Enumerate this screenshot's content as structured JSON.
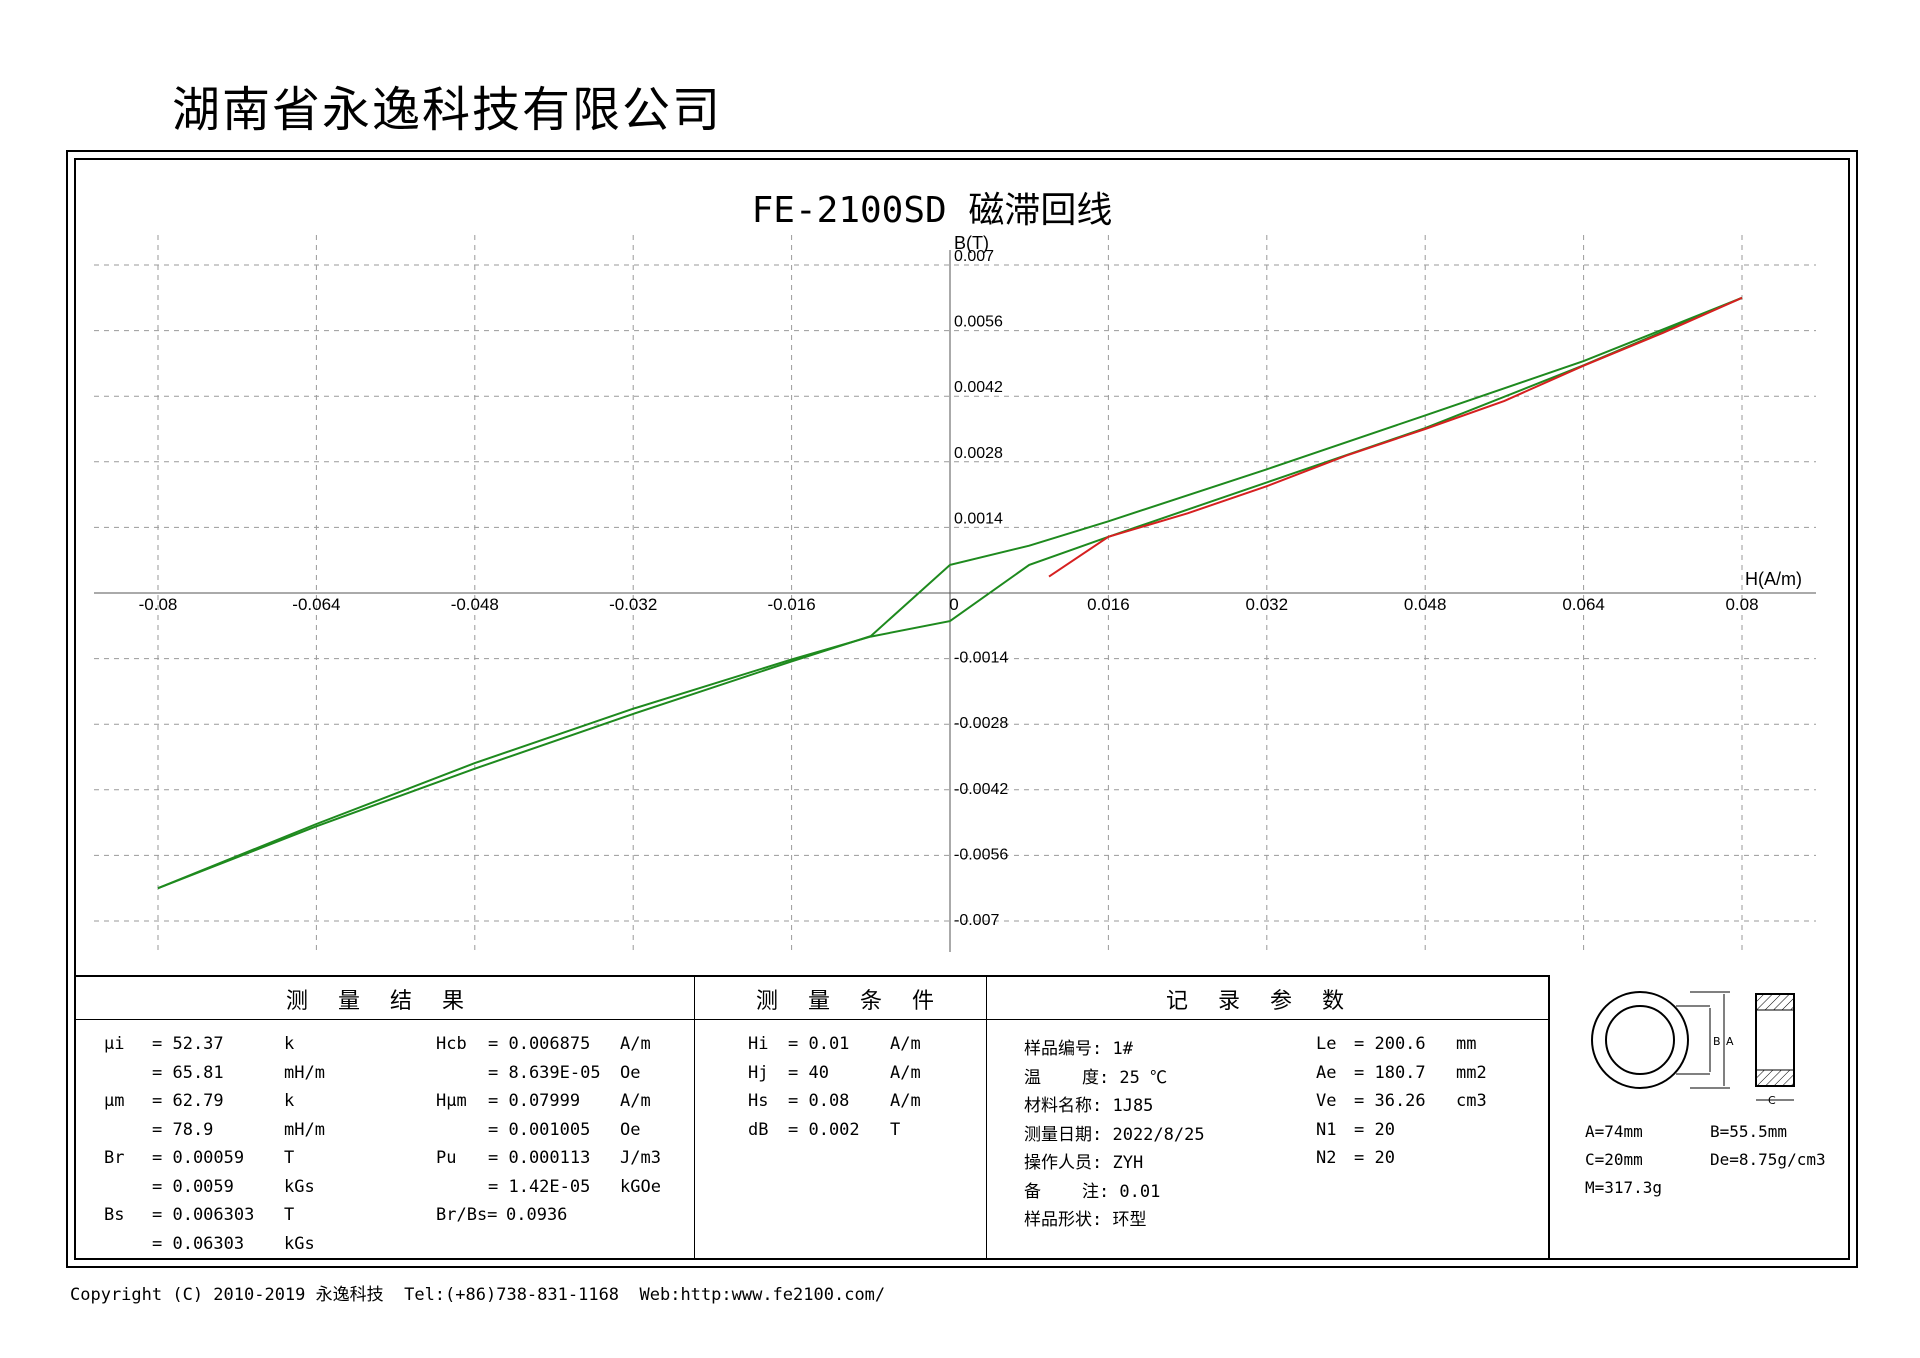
{
  "company": "湖南省永逸科技有限公司",
  "chart_data": {
    "type": "line",
    "title": "FE-2100SD 磁滞回线",
    "xlabel": "H(A/m)",
    "ylabel": "B(T)",
    "xlim": [
      -0.088,
      0.088
    ],
    "ylim": [
      -0.0077,
      0.0077
    ],
    "grid": true,
    "x_ticks": [
      "-0.08",
      "-0.064",
      "-0.048",
      "-0.032",
      "-0.016",
      "0",
      "0.016",
      "0.032",
      "0.048",
      "0.064",
      "0.08"
    ],
    "x_tick_values": [
      -0.08,
      -0.064,
      -0.048,
      -0.032,
      -0.016,
      0,
      0.016,
      0.032,
      0.048,
      0.064,
      0.08
    ],
    "y_ticks": [
      "0.007",
      "0.0056",
      "0.0042",
      "0.0028",
      "0.0014",
      "-0.0014",
      "-0.0028",
      "-0.0042",
      "-0.0056",
      "-0.007"
    ],
    "y_tick_values": [
      0.007,
      0.0056,
      0.0042,
      0.0028,
      0.0014,
      -0.0014,
      -0.0028,
      -0.0042,
      -0.0056,
      -0.007
    ],
    "series": [
      {
        "color": "#1e8a1e",
        "x": [
          -0.08,
          -0.064,
          -0.048,
          -0.032,
          -0.016,
          -0.008,
          0,
          0.008,
          0.016,
          0.032,
          0.048,
          0.064,
          0.08
        ],
        "y": [
          -0.0063,
          -0.00498,
          -0.00375,
          -0.00258,
          -0.00146,
          -0.00092,
          0.0006,
          0.00101,
          0.00153,
          0.00264,
          0.00379,
          0.00495,
          0.0063
        ]
      },
      {
        "color": "#1e8a1e",
        "x": [
          0.08,
          0.064,
          0.048,
          0.032,
          0.016,
          0.008,
          0,
          -0.008,
          -0.016,
          -0.032,
          -0.048,
          -0.064,
          -0.08
        ],
        "y": [
          0.0063,
          0.00486,
          0.00352,
          0.00236,
          0.0012,
          0.0006,
          -0.0006,
          -0.00093,
          -0.00142,
          -0.00247,
          -0.00363,
          -0.00493,
          -0.0063
        ]
      },
      {
        "color": "#d62020",
        "x": [
          0.01,
          0.016,
          0.024,
          0.032,
          0.04,
          0.048,
          0.056,
          0.064,
          0.072,
          0.08
        ],
        "y": [
          0.00035,
          0.0012,
          0.0017,
          0.00228,
          0.00293,
          0.0035,
          0.0041,
          0.00485,
          0.00555,
          0.0063
        ]
      }
    ]
  },
  "sections": {
    "results": "测量结果",
    "conditions": "测量条件",
    "params": "记录参数"
  },
  "results": {
    "col1": [
      [
        "μi",
        "= 52.37",
        "k"
      ],
      [
        "",
        "= 65.81",
        "mH/m"
      ],
      [
        "μm",
        "= 62.79",
        "k"
      ],
      [
        "",
        "= 78.9",
        "mH/m"
      ],
      [
        "Br",
        "= 0.00059",
        "T"
      ],
      [
        "",
        "= 0.0059",
        "kGs"
      ],
      [
        "Bs",
        "= 0.006303",
        "T"
      ],
      [
        "",
        "= 0.06303",
        "kGs"
      ]
    ],
    "col2": [
      [
        "Hcb",
        "= 0.006875",
        "A/m"
      ],
      [
        "",
        "= 8.639E-05",
        "Oe"
      ],
      [
        "Hμm",
        "= 0.07999",
        "A/m"
      ],
      [
        "",
        "= 0.001005",
        "Oe"
      ],
      [
        "Pu",
        "= 0.000113",
        "J/m3"
      ],
      [
        "",
        "= 1.42E-05",
        "kGOe"
      ],
      [
        "Br/Bs=",
        "0.0936",
        ""
      ]
    ]
  },
  "conditions": [
    [
      "Hi",
      "= 0.01",
      "A/m"
    ],
    [
      "Hj",
      "= 40",
      "A/m"
    ],
    [
      "Hs",
      "= 0.08",
      "A/m"
    ],
    [
      "dB",
      "= 0.002",
      "T"
    ]
  ],
  "params": {
    "col1": [
      "样品编号: 1#",
      "温    度: 25 ℃",
      "材料名称: 1J85",
      "测量日期: 2022/8/25",
      "操作人员: ZYH",
      "备    注: 0.01",
      "样品形状: 环型"
    ],
    "col2": [
      [
        "Le",
        "= 200.6",
        "mm"
      ],
      [
        "Ae",
        "= 180.7",
        "mm2"
      ],
      [
        "Ve",
        "= 36.26",
        "cm3"
      ],
      [
        "N1",
        "= 20",
        ""
      ],
      [
        "N2",
        "= 20",
        ""
      ]
    ]
  },
  "dims": {
    "a": "A=74mm",
    "b": "B=55.5mm",
    "c": "C=20mm",
    "de": "De=8.75g/cm3",
    "m": "M=317.3g",
    "label_b": "B",
    "label_a": "A",
    "label_c": "C"
  },
  "footer": "Copyright (C) 2010-2019 永逸科技  Tel:(+86)738-831-1168  Web:http:www.fe2100.com/"
}
